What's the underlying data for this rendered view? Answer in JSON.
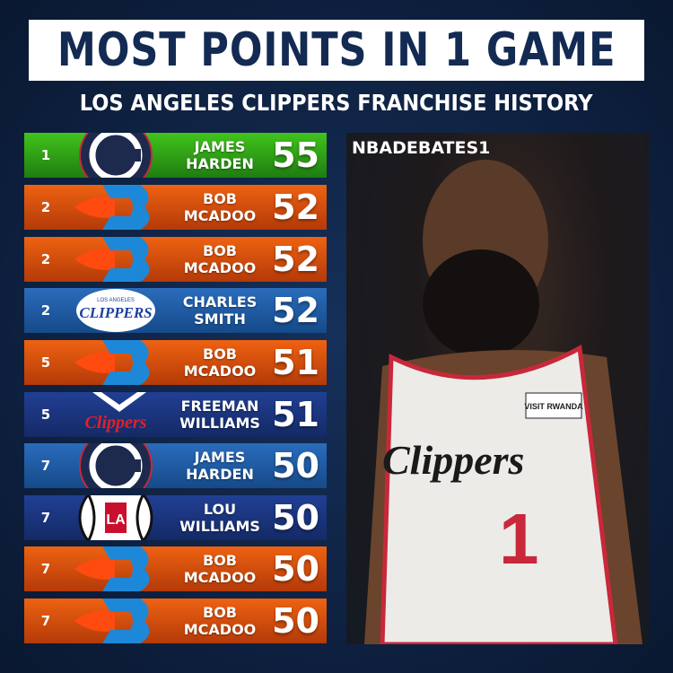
{
  "header": {
    "title": "MOST POINTS IN 1 GAME",
    "subtitle": "LOS ANGELES CLIPPERS FRANCHISE HISTORY"
  },
  "rows": [
    {
      "rank": "1",
      "first": "JAMES",
      "last": "HARDEN",
      "points": "55",
      "logo": "clippers-current-logo",
      "color": "#3cb81c"
    },
    {
      "rank": "2",
      "first": "BOB",
      "last": "MCADOO",
      "points": "52",
      "logo": "buffalo-braves-logo",
      "color": "#e85a10"
    },
    {
      "rank": "2",
      "first": "BOB",
      "last": "MCADOO",
      "points": "52",
      "logo": "buffalo-braves-logo",
      "color": "#e85a10"
    },
    {
      "rank": "2",
      "first": "CHARLES",
      "last": "SMITH",
      "points": "52",
      "logo": "la-clippers-classic-logo",
      "color": "#1f5ea8"
    },
    {
      "rank": "5",
      "first": "BOB",
      "last": "MCADOO",
      "points": "51",
      "logo": "buffalo-braves-logo",
      "color": "#e85a10"
    },
    {
      "rank": "5",
      "first": "FREEMAN",
      "last": "WILLIAMS",
      "points": "51",
      "logo": "san-diego-clippers-logo",
      "color": "#1b3a86"
    },
    {
      "rank": "7",
      "first": "JAMES",
      "last": "HARDEN",
      "points": "50",
      "logo": "clippers-current-logo",
      "color": "#1f5ea8"
    },
    {
      "rank": "7",
      "first": "LOU",
      "last": "WILLIAMS",
      "points": "50",
      "logo": "la-clippers-ball-logo",
      "color": "#1b3a86"
    },
    {
      "rank": "7",
      "first": "BOB",
      "last": "MCADOO",
      "points": "50",
      "logo": "buffalo-braves-logo",
      "color": "#e85a10"
    },
    {
      "rank": "7",
      "first": "BOB",
      "last": "MCADOO",
      "points": "50",
      "logo": "buffalo-braves-logo",
      "color": "#e85a10"
    }
  ],
  "photo": {
    "watermark": "NBADEBATES1",
    "jersey_text": "Clippers",
    "jersey_number": "1",
    "sponsor": "VISIT RWANDA"
  }
}
